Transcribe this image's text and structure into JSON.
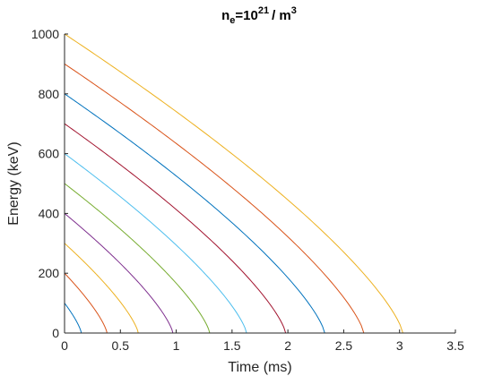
{
  "chart_data": {
    "type": "line",
    "title": {
      "base": "n",
      "sub": "e",
      "middle": "=10",
      "sup": "21",
      "unit": "/ m",
      "unit_sup": "3"
    },
    "xlabel": "Time (ms)",
    "ylabel": "Energy (keV)",
    "xlim": [
      0,
      3.5
    ],
    "ylim": [
      0,
      1000
    ],
    "xticks": [
      "0",
      "0.5",
      "1",
      "1.5",
      "2",
      "2.5",
      "3",
      "3.5"
    ],
    "yticks": [
      "0",
      "200",
      "400",
      "600",
      "800",
      "1000"
    ],
    "grid": false,
    "legend": "none",
    "curve_shape_exponent": 0.75,
    "series": [
      {
        "color": "#0072BD",
        "start_energy": 100,
        "end_time": 0.15
      },
      {
        "color": "#D95319",
        "start_energy": 200,
        "end_time": 0.38
      },
      {
        "color": "#EDB120",
        "start_energy": 300,
        "end_time": 0.66
      },
      {
        "color": "#7E2F8E",
        "start_energy": 400,
        "end_time": 0.97
      },
      {
        "color": "#77AC30",
        "start_energy": 500,
        "end_time": 1.3
      },
      {
        "color": "#4DBEEE",
        "start_energy": 600,
        "end_time": 1.63
      },
      {
        "color": "#A2142F",
        "start_energy": 700,
        "end_time": 1.98
      },
      {
        "color": "#0072BD",
        "start_energy": 800,
        "end_time": 2.33
      },
      {
        "color": "#D95319",
        "start_energy": 900,
        "end_time": 2.68
      },
      {
        "color": "#EDB120",
        "start_energy": 1000,
        "end_time": 3.03
      }
    ]
  }
}
